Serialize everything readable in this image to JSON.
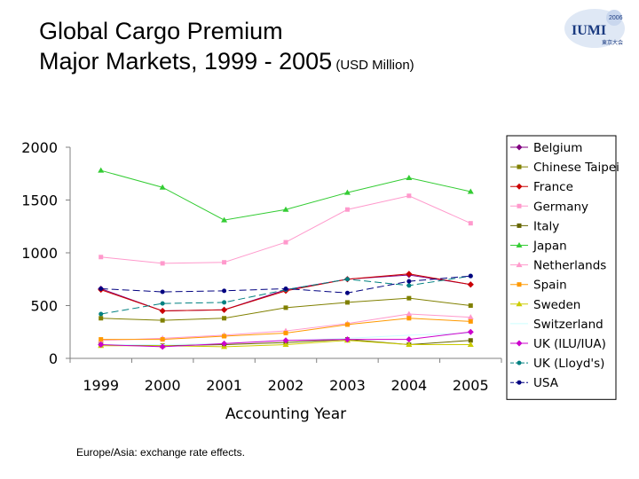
{
  "title": {
    "line1": "Global Cargo Premium",
    "line2_main": "Major Markets, 1999 - 2005",
    "line2_unit": " (USD Million)"
  },
  "logo": {
    "year": "2006",
    "name": "IUMI",
    "tagline": "東京大会"
  },
  "footnote": "Europe/Asia: exchange rate effects.",
  "chart_data": {
    "type": "line",
    "xlabel": "Accounting Year",
    "ylabel": "",
    "x": [
      "1999",
      "2000",
      "2001",
      "2002",
      "2003",
      "2004",
      "2005"
    ],
    "ylim": [
      0,
      2000
    ],
    "yticks": [
      0,
      500,
      1000,
      1500,
      2000
    ],
    "grid": false,
    "legend": "right",
    "series": [
      {
        "name": "Belgium",
        "color": "#800080",
        "marker": "diamond",
        "dash": "none",
        "values": [
          660,
          450,
          460,
          650,
          750,
          790,
          700
        ]
      },
      {
        "name": "Chinese Taipei",
        "color": "#808000",
        "marker": "square",
        "dash": "none",
        "values": [
          380,
          360,
          380,
          480,
          530,
          570,
          500
        ]
      },
      {
        "name": "France",
        "color": "#cc0000",
        "marker": "diamond",
        "dash": "none",
        "values": [
          650,
          450,
          460,
          640,
          750,
          800,
          700
        ]
      },
      {
        "name": "Germany",
        "color": "#ff99cc",
        "marker": "square",
        "dash": "none",
        "values": [
          960,
          900,
          910,
          1100,
          1410,
          1540,
          1280
        ]
      },
      {
        "name": "Italy",
        "color": "#666600",
        "marker": "square",
        "dash": "none",
        "values": [
          130,
          120,
          130,
          150,
          180,
          130,
          170
        ]
      },
      {
        "name": "Japan",
        "color": "#33cc33",
        "marker": "triangle",
        "dash": "none",
        "values": [
          1780,
          1620,
          1310,
          1410,
          1570,
          1710,
          1580
        ]
      },
      {
        "name": "Netherlands",
        "color": "#ff99cc",
        "marker": "triangle",
        "dash": "none",
        "values": [
          170,
          190,
          220,
          260,
          330,
          420,
          390
        ]
      },
      {
        "name": "Spain",
        "color": "#ff9900",
        "marker": "square",
        "dash": "none",
        "values": [
          180,
          180,
          210,
          240,
          320,
          380,
          350
        ]
      },
      {
        "name": "Sweden",
        "color": "#cccc00",
        "marker": "triangle",
        "dash": "none",
        "values": [
          120,
          120,
          110,
          130,
          170,
          130,
          130
        ]
      },
      {
        "name": "Switzerland",
        "color": "#ccffff",
        "marker": "none",
        "dash": "none",
        "values": [
          130,
          130,
          140,
          170,
          190,
          220,
          240
        ]
      },
      {
        "name": "UK (ILU/IUA)",
        "color": "#cc00cc",
        "marker": "diamond",
        "dash": "none",
        "values": [
          130,
          110,
          140,
          170,
          180,
          180,
          250
        ]
      },
      {
        "name": "UK (Lloyd's)",
        "color": "#008080",
        "marker": "circle",
        "dash": "dash",
        "values": [
          420,
          520,
          530,
          650,
          750,
          690,
          780
        ]
      },
      {
        "name": "USA",
        "color": "#000080",
        "marker": "circle",
        "dash": "dash",
        "values": [
          660,
          630,
          640,
          660,
          620,
          730,
          780
        ]
      }
    ]
  }
}
